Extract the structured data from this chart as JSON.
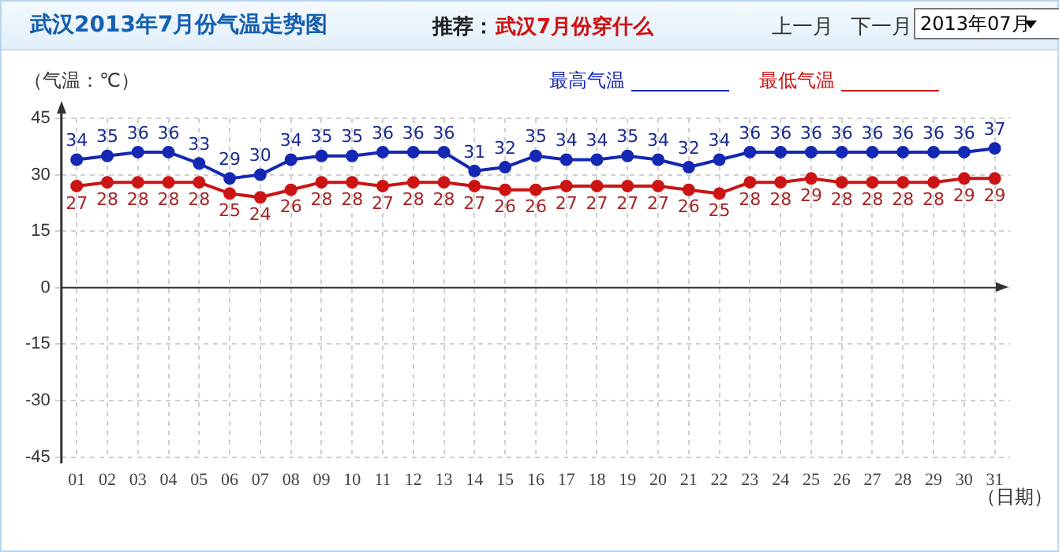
{
  "chart_data": {
    "type": "line",
    "title": "武汉2013年7月份气温走势图",
    "ylabel": "（气温：℃）",
    "xlabel": "（日期）",
    "annotations": [
      "推荐：",
      "武汉7月份穿什么",
      "上一月",
      "下一月",
      "2013年07月"
    ],
    "categories": [
      "01",
      "02",
      "03",
      "04",
      "05",
      "06",
      "07",
      "08",
      "09",
      "10",
      "11",
      "12",
      "13",
      "14",
      "15",
      "16",
      "17",
      "18",
      "19",
      "20",
      "21",
      "22",
      "23",
      "24",
      "25",
      "26",
      "27",
      "28",
      "29",
      "30",
      "31"
    ],
    "series": [
      {
        "name": "最高气温",
        "color": "#1428b4",
        "values": [
          34,
          35,
          36,
          36,
          33,
          29,
          30,
          34,
          35,
          35,
          36,
          36,
          36,
          31,
          32,
          35,
          34,
          34,
          35,
          34,
          32,
          34,
          36,
          36,
          36,
          36,
          36,
          36,
          36,
          36,
          37
        ]
      },
      {
        "name": "最低气温",
        "color": "#cc1414",
        "values": [
          27,
          28,
          28,
          28,
          28,
          25,
          24,
          26,
          28,
          28,
          27,
          28,
          28,
          27,
          26,
          26,
          27,
          27,
          27,
          27,
          26,
          25,
          28,
          28,
          29,
          28,
          28,
          28,
          28,
          29,
          29
        ]
      }
    ],
    "ref_lines": [
      {
        "axis": "y",
        "value": 0
      }
    ],
    "ylim": [
      -45,
      45
    ],
    "yticks": [
      -45,
      -30,
      -15,
      0,
      15,
      30,
      45
    ],
    "grid": true,
    "legend": "top",
    "marker": "circle",
    "line_style": "solid",
    "data_labels": true
  }
}
